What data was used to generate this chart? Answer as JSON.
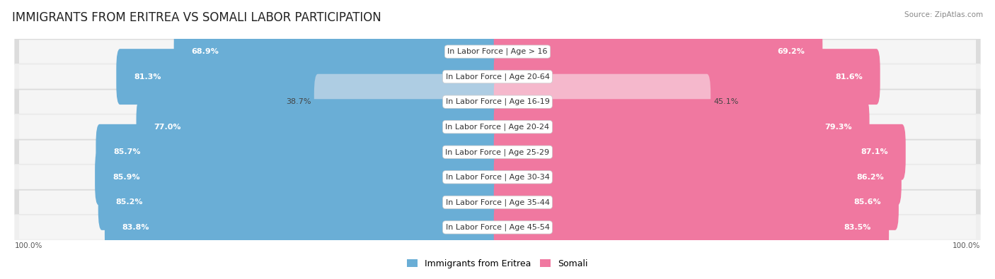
{
  "title": "IMMIGRANTS FROM ERITREA VS SOMALI LABOR PARTICIPATION",
  "source": "Source: ZipAtlas.com",
  "categories": [
    "In Labor Force | Age > 16",
    "In Labor Force | Age 20-64",
    "In Labor Force | Age 16-19",
    "In Labor Force | Age 20-24",
    "In Labor Force | Age 25-29",
    "In Labor Force | Age 30-34",
    "In Labor Force | Age 35-44",
    "In Labor Force | Age 45-54"
  ],
  "eritrea_values": [
    68.9,
    81.3,
    38.7,
    77.0,
    85.7,
    85.9,
    85.2,
    83.8
  ],
  "somali_values": [
    69.2,
    81.6,
    45.1,
    79.3,
    87.1,
    86.2,
    85.6,
    83.5
  ],
  "eritrea_color": "#6aaed6",
  "eritrea_color_light": "#aecde3",
  "somali_color": "#f078a0",
  "somali_color_light": "#f5b8cc",
  "row_bg_color_dark": "#dcdcdc",
  "row_bg_color_light": "#efefef",
  "row_pill_color": "#f5f5f5",
  "max_value": 100.0,
  "bar_height": 0.62,
  "legend_eritrea": "Immigrants from Eritrea",
  "legend_somali": "Somali",
  "title_fontsize": 12,
  "value_fontsize": 8,
  "category_fontsize": 8
}
